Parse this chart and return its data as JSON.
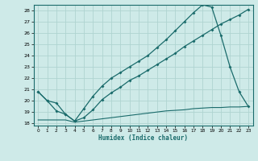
{
  "xlabel": "Humidex (Indice chaleur)",
  "bg_color": "#ceeae8",
  "grid_color": "#afd4d1",
  "line_color": "#1a6b6b",
  "xlim": [
    -0.5,
    23.5
  ],
  "ylim": [
    17.8,
    28.5
  ],
  "yticks": [
    18,
    19,
    20,
    21,
    22,
    23,
    24,
    25,
    26,
    27,
    28
  ],
  "xticks": [
    0,
    1,
    2,
    3,
    4,
    5,
    6,
    7,
    8,
    9,
    10,
    11,
    12,
    13,
    14,
    15,
    16,
    17,
    18,
    19,
    20,
    21,
    22,
    23
  ],
  "line1_x": [
    0,
    1,
    2,
    3,
    4,
    5,
    6,
    7,
    8,
    9,
    10,
    11,
    12,
    13,
    14,
    15,
    16,
    17,
    18,
    19,
    20,
    21,
    22,
    23
  ],
  "line1_y": [
    20.8,
    20.0,
    19.1,
    18.8,
    18.2,
    18.5,
    19.2,
    20.1,
    20.7,
    21.2,
    21.8,
    22.2,
    22.7,
    23.2,
    23.7,
    24.2,
    24.8,
    25.3,
    25.8,
    26.3,
    26.8,
    27.2,
    27.6,
    28.1
  ],
  "line2_x": [
    0,
    1,
    2,
    3,
    4,
    5,
    6,
    7,
    8,
    9,
    10,
    11,
    12,
    13,
    14,
    15,
    16,
    17,
    18,
    19,
    20,
    21,
    22,
    23
  ],
  "line2_y": [
    20.8,
    20.0,
    19.8,
    18.8,
    18.2,
    19.3,
    20.4,
    21.3,
    22.0,
    22.5,
    23.0,
    23.5,
    24.0,
    24.7,
    25.4,
    26.2,
    27.0,
    27.8,
    28.5,
    28.3,
    25.8,
    23.0,
    20.8,
    19.5
  ],
  "line3_x": [
    0,
    1,
    2,
    3,
    4,
    5,
    6,
    7,
    8,
    9,
    10,
    11,
    12,
    13,
    14,
    15,
    16,
    17,
    18,
    19,
    20,
    21,
    22,
    23
  ],
  "line3_y": [
    18.3,
    18.3,
    18.3,
    18.3,
    18.1,
    18.2,
    18.3,
    18.4,
    18.5,
    18.6,
    18.7,
    18.8,
    18.9,
    19.0,
    19.1,
    19.15,
    19.2,
    19.3,
    19.35,
    19.4,
    19.4,
    19.45,
    19.45,
    19.5
  ]
}
